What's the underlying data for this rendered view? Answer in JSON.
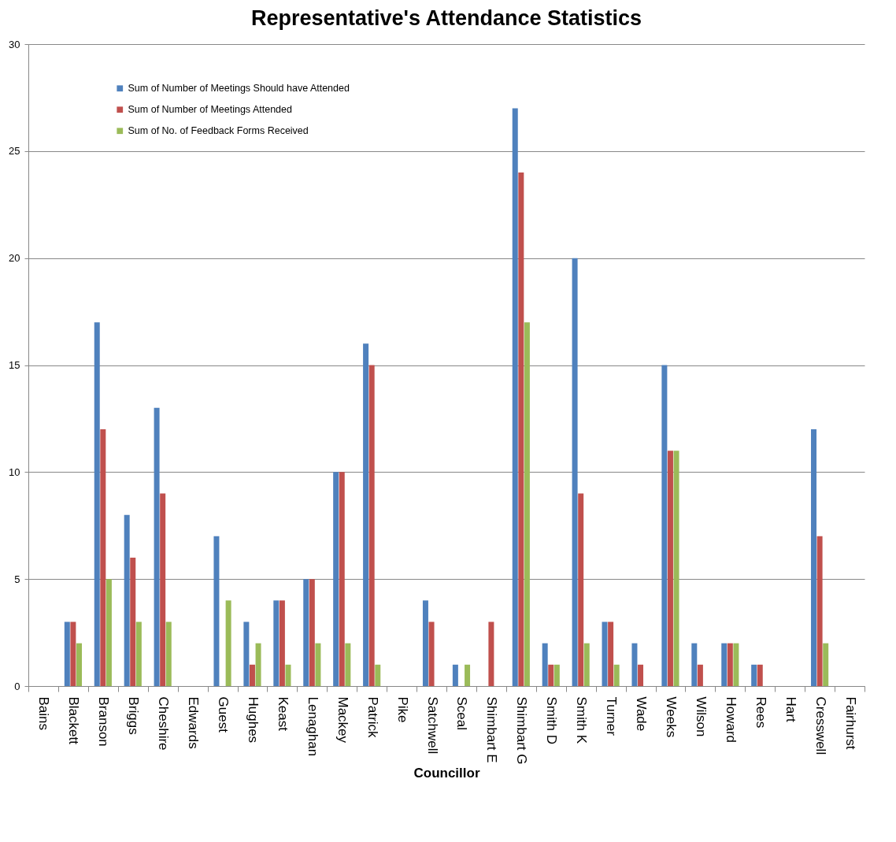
{
  "chart_data": {
    "type": "bar",
    "title": "Representative's Attendance Statistics",
    "xlabel": "Councillor",
    "categories": [
      "Bains",
      "Blackett",
      "Branson",
      "Briggs",
      "Cheshire",
      "Edwards",
      "Guest",
      "Hughes",
      "Keast",
      "Lenaghan",
      "Mackey",
      "Patrick",
      "Pike",
      "Satchwell",
      "Sceal",
      "Shimbart E",
      "Shimbart G",
      "Smith D",
      "Smith K",
      "Turner",
      "Wade",
      "Weeks",
      "Wilson",
      "Howard",
      "Rees",
      "Hart",
      "Cresswell",
      "Fairhurst"
    ],
    "series": [
      {
        "name": "Sum of Number of Meetings Should have Attended",
        "color": "#4f81bd",
        "values": [
          0,
          3,
          17,
          8,
          13,
          0,
          7,
          3,
          4,
          5,
          10,
          16,
          0,
          4,
          1,
          0,
          27,
          2,
          20,
          3,
          2,
          15,
          2,
          2,
          1,
          0,
          12,
          0
        ]
      },
      {
        "name": "Sum of Number of Meetings Attended",
        "color": "#c0504d",
        "values": [
          0,
          3,
          12,
          6,
          9,
          0,
          0,
          1,
          4,
          5,
          10,
          15,
          0,
          3,
          0,
          3,
          24,
          1,
          9,
          3,
          1,
          11,
          1,
          2,
          1,
          0,
          7,
          0
        ]
      },
      {
        "name": "Sum of No. of Feedback Forms Received",
        "color": "#9bbb59",
        "values": [
          0,
          2,
          5,
          3,
          3,
          0,
          4,
          2,
          1,
          2,
          2,
          1,
          0,
          0,
          1,
          0,
          17,
          1,
          2,
          1,
          0,
          11,
          0,
          2,
          0,
          0,
          2,
          0
        ]
      }
    ],
    "ylim": [
      0,
      30
    ],
    "yticks": [
      0,
      5,
      10,
      15,
      20,
      25,
      30
    ],
    "grid": "y",
    "legend": "top left"
  }
}
